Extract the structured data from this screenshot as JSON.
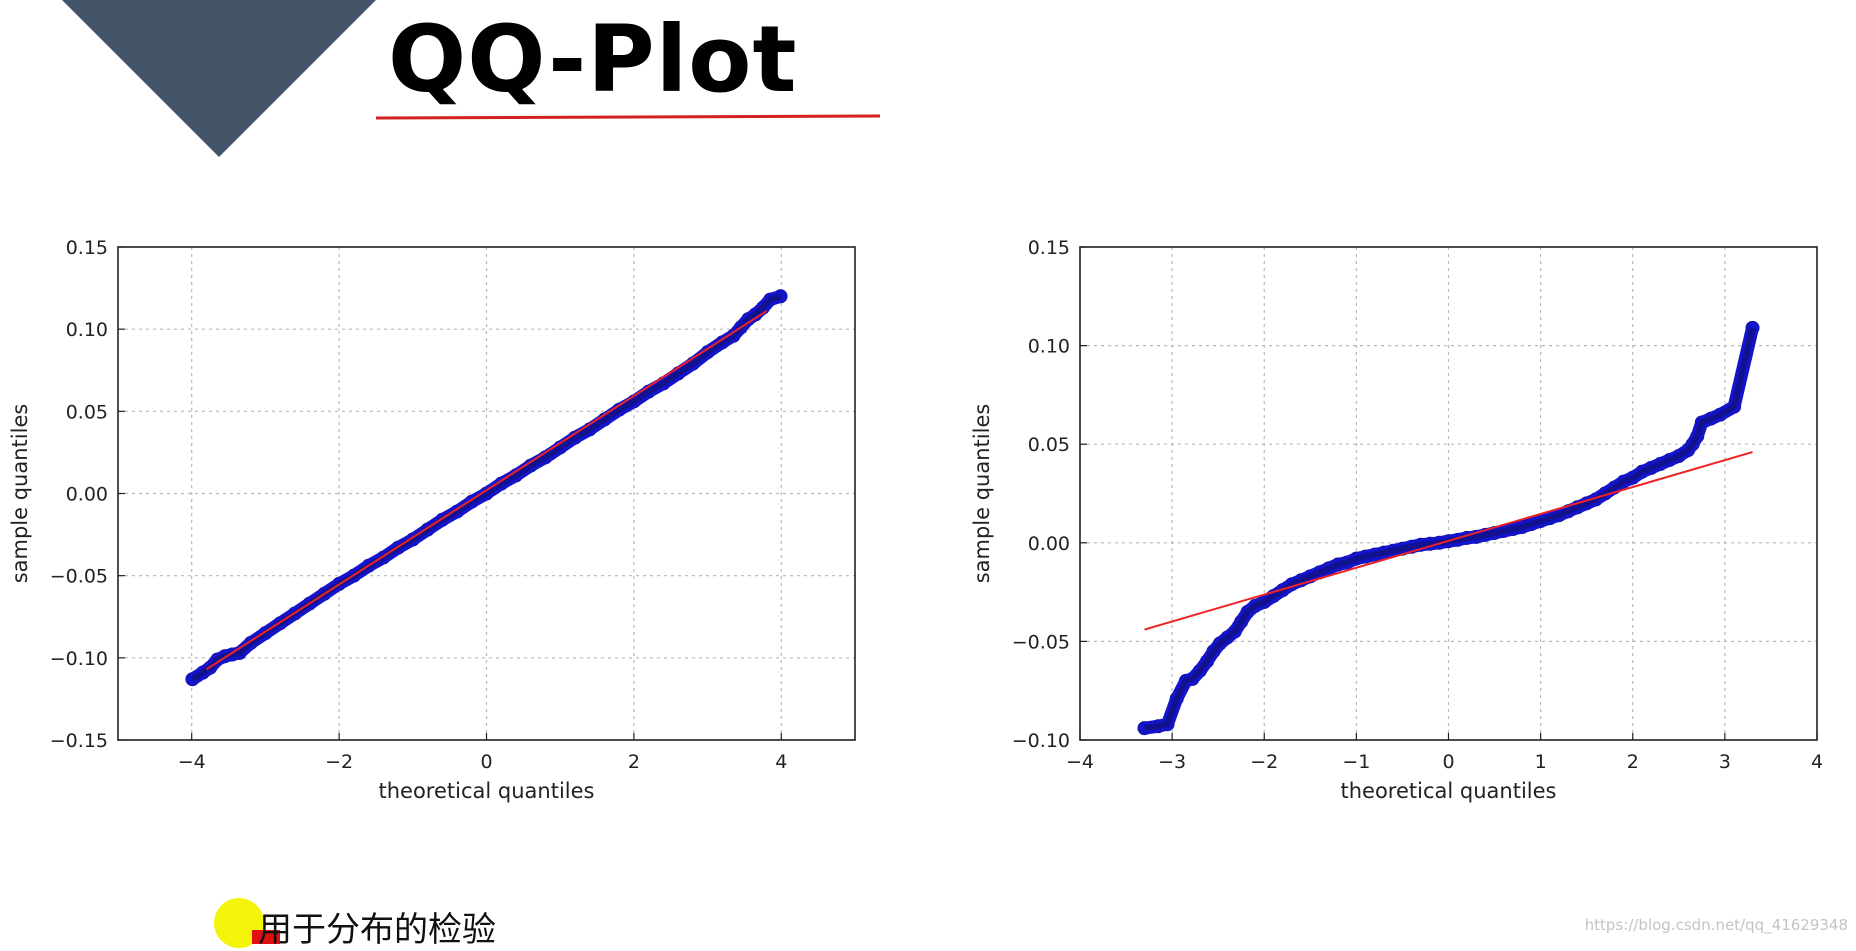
{
  "slide": {
    "title": "QQ-Plot",
    "bullet_text": "用于分布的检验",
    "watermark": "https://blog.csdn.net/qq_41629348",
    "colors": {
      "corner": "#435368",
      "rule": "#d42020",
      "points": "#1414cc",
      "fit_line": "#ee2222",
      "bullet": "#f4f40a"
    }
  },
  "chart_data": [
    {
      "type": "scatter",
      "title": "",
      "xlabel": "theoretical quantiles",
      "ylabel": "sample quantiles",
      "xlim": [
        -5,
        5
      ],
      "ylim": [
        -0.15,
        0.15
      ],
      "xticks": [
        -4,
        -2,
        0,
        2,
        4
      ],
      "xtick_labels": [
        "−4",
        "−2",
        "0",
        "2",
        "4"
      ],
      "yticks": [
        -0.15,
        -0.1,
        -0.05,
        0.0,
        0.05,
        0.1,
        0.15
      ],
      "ytick_labels": [
        "−0.15",
        "−0.10",
        "−0.05",
        "0.00",
        "0.05",
        "0.10",
        "0.15"
      ],
      "grid": true,
      "fit_line": {
        "x": [
          -3.8,
          3.8
        ],
        "y": [
          -0.107,
          0.111
        ]
      },
      "series": [
        {
          "x": [
            -3.99,
            -3.85,
            -3.75,
            -3.65,
            -3.55,
            -3.45,
            -3.35,
            -3.2,
            -3.0,
            -2.8,
            -2.6,
            -2.4,
            -2.2,
            -2.0,
            -1.8,
            -1.6,
            -1.4,
            -1.2,
            -1.0,
            -0.8,
            -0.6,
            -0.4,
            -0.2,
            0.0,
            0.2,
            0.4,
            0.6,
            0.8,
            1.0,
            1.2,
            1.4,
            1.6,
            1.8,
            2.0,
            2.2,
            2.4,
            2.6,
            2.8,
            3.0,
            3.2,
            3.35,
            3.45,
            3.55,
            3.65,
            3.75,
            3.85,
            3.99
          ],
          "y": [
            -0.113,
            -0.109,
            -0.106,
            -0.101,
            -0.099,
            -0.098,
            -0.097,
            -0.091,
            -0.085,
            -0.079,
            -0.073,
            -0.067,
            -0.061,
            -0.055,
            -0.05,
            -0.044,
            -0.039,
            -0.033,
            -0.028,
            -0.022,
            -0.016,
            -0.011,
            -0.005,
            0.0,
            0.006,
            0.011,
            0.017,
            0.022,
            0.028,
            0.034,
            0.039,
            0.045,
            0.051,
            0.056,
            0.062,
            0.067,
            0.073,
            0.079,
            0.086,
            0.092,
            0.096,
            0.101,
            0.106,
            0.109,
            0.113,
            0.118,
            0.12
          ]
        }
      ]
    },
    {
      "type": "scatter",
      "title": "",
      "xlabel": "theoretical quantiles",
      "ylabel": "sample quantiles",
      "xlim": [
        -4,
        4
      ],
      "ylim": [
        -0.1,
        0.15
      ],
      "xticks": [
        -4,
        -3,
        -2,
        -1,
        0,
        1,
        2,
        3,
        4
      ],
      "xtick_labels": [
        "−4",
        "−3",
        "−2",
        "−1",
        "0",
        "1",
        "2",
        "3",
        "4"
      ],
      "yticks": [
        -0.1,
        -0.05,
        0.0,
        0.05,
        0.1,
        0.15
      ],
      "ytick_labels": [
        "−0.10",
        "−0.05",
        "0.00",
        "0.05",
        "0.10",
        "0.15"
      ],
      "grid": true,
      "fit_line": {
        "x": [
          -3.3,
          3.3
        ],
        "y": [
          -0.044,
          0.046
        ]
      },
      "series": [
        {
          "x": [
            -3.3,
            -3.15,
            -3.05,
            -2.95,
            -2.85,
            -2.78,
            -2.7,
            -2.62,
            -2.55,
            -2.48,
            -2.4,
            -2.32,
            -2.25,
            -2.18,
            -2.1,
            -2.0,
            -1.9,
            -1.8,
            -1.7,
            -1.6,
            -1.5,
            -1.4,
            -1.3,
            -1.2,
            -1.1,
            -1.0,
            -0.9,
            -0.8,
            -0.7,
            -0.6,
            -0.5,
            -0.4,
            -0.3,
            -0.2,
            -0.1,
            0.0,
            0.1,
            0.2,
            0.3,
            0.4,
            0.5,
            0.6,
            0.7,
            0.8,
            0.9,
            1.0,
            1.1,
            1.2,
            1.3,
            1.4,
            1.5,
            1.6,
            1.7,
            1.8,
            1.9,
            2.0,
            2.1,
            2.2,
            2.3,
            2.4,
            2.5,
            2.6,
            2.65,
            2.7,
            2.75,
            2.85,
            2.95,
            3.1,
            3.3
          ],
          "y": [
            -0.094,
            -0.093,
            -0.092,
            -0.079,
            -0.07,
            -0.069,
            -0.065,
            -0.06,
            -0.055,
            -0.051,
            -0.048,
            -0.045,
            -0.04,
            -0.035,
            -0.032,
            -0.03,
            -0.027,
            -0.024,
            -0.021,
            -0.019,
            -0.017,
            -0.015,
            -0.013,
            -0.011,
            -0.01,
            -0.008,
            -0.007,
            -0.006,
            -0.005,
            -0.004,
            -0.003,
            -0.002,
            -0.001,
            -0.0005,
            0.0,
            0.0008,
            0.0015,
            0.0025,
            0.003,
            0.004,
            0.005,
            0.006,
            0.007,
            0.008,
            0.0095,
            0.011,
            0.0125,
            0.014,
            0.016,
            0.018,
            0.02,
            0.022,
            0.025,
            0.028,
            0.031,
            0.033,
            0.036,
            0.038,
            0.04,
            0.042,
            0.044,
            0.047,
            0.05,
            0.054,
            0.061,
            0.063,
            0.065,
            0.069,
            0.109
          ]
        }
      ]
    }
  ]
}
